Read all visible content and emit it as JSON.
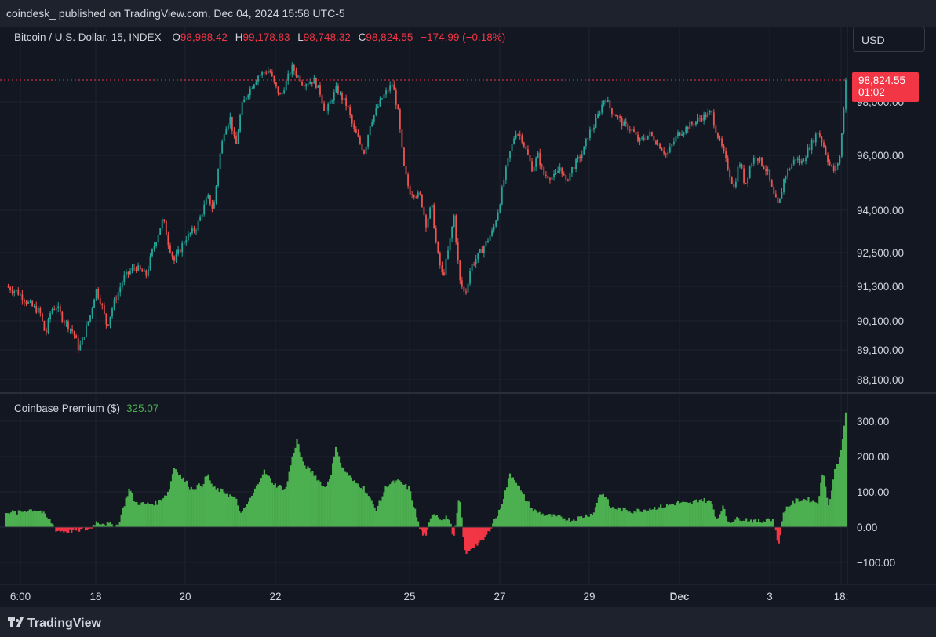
{
  "header": {
    "publish_line": "coindesk_ published on TradingView.com, Dec 04, 2024 15:58 UTC-5"
  },
  "legend": {
    "symbol": "Bitcoin / U.S. Dollar, 15, INDEX",
    "o_label": "O",
    "o_value": "98,988.42",
    "h_label": "H",
    "h_value": "99,178.83",
    "l_label": "L",
    "l_value": "98,748.32",
    "c_label": "C",
    "c_value": "98,824.55",
    "change": "−174.99 (−0.18%)"
  },
  "currency_button": "USD",
  "price_tag": {
    "price": "98,824.55",
    "countdown": "01:02"
  },
  "indicator": {
    "name": "Coinbase Premium ($)",
    "value": "325.07"
  },
  "footer": {
    "brand": "TradingView"
  },
  "colors": {
    "up": "#26a69a",
    "down": "#ef5350",
    "premium_pos": "#4caf50",
    "premium_neg": "#f23645",
    "price_line": "#f23645"
  },
  "chart_data": [
    {
      "type": "candlestick",
      "title": "Bitcoin / U.S. Dollar, 15, INDEX",
      "y_ticks": [
        "98,000.00",
        "96,000.00",
        "94,000.00",
        "92,500.00",
        "91,300.00",
        "90,100.00",
        "89,100.00",
        "88,100.00"
      ],
      "y_tick_values": [
        98000,
        96000,
        94000,
        92500,
        91300,
        90100,
        89100,
        88100
      ],
      "x_ticks": [
        "6:00",
        "18",
        "20",
        "22",
        "25",
        "27",
        "29",
        "Dec",
        "3",
        "18:"
      ],
      "last_price": 98824.55,
      "close_path": [
        [
          0,
          91300
        ],
        [
          2,
          91100
        ],
        [
          4,
          90700
        ],
        [
          6,
          90400
        ],
        [
          7,
          89600
        ],
        [
          8,
          90500
        ],
        [
          9,
          90600
        ],
        [
          10,
          90200
        ],
        [
          12,
          89700
        ],
        [
          13,
          89100
        ],
        [
          15,
          90300
        ],
        [
          16,
          91200
        ],
        [
          17,
          90700
        ],
        [
          18,
          89900
        ],
        [
          19,
          90600
        ],
        [
          21,
          91600
        ],
        [
          23,
          92000
        ],
        [
          25,
          91700
        ],
        [
          26,
          92500
        ],
        [
          28,
          93700
        ],
        [
          29,
          92800
        ],
        [
          30,
          92200
        ],
        [
          32,
          93000
        ],
        [
          34,
          93400
        ],
        [
          36,
          94500
        ],
        [
          37,
          94000
        ],
        [
          38,
          95800
        ],
        [
          39,
          97000
        ],
        [
          40,
          97400
        ],
        [
          41,
          96300
        ],
        [
          42,
          97800
        ],
        [
          43,
          98300
        ],
        [
          45,
          99000
        ],
        [
          47,
          99200
        ],
        [
          48,
          98600
        ],
        [
          49,
          98200
        ],
        [
          51,
          99300
        ],
        [
          53,
          98700
        ],
        [
          55,
          98800
        ],
        [
          56,
          98400
        ],
        [
          57,
          97600
        ],
        [
          59,
          98500
        ],
        [
          61,
          97800
        ],
        [
          62,
          97000
        ],
        [
          64,
          96100
        ],
        [
          65,
          97200
        ],
        [
          67,
          98100
        ],
        [
          69,
          98700
        ],
        [
          70,
          97600
        ],
        [
          71,
          95600
        ],
        [
          72,
          94700
        ],
        [
          74,
          94500
        ],
        [
          75,
          93500
        ],
        [
          76,
          94200
        ],
        [
          77,
          92500
        ],
        [
          78,
          91600
        ],
        [
          79,
          92600
        ],
        [
          80,
          93800
        ],
        [
          81,
          91500
        ],
        [
          82,
          91000
        ],
        [
          83,
          92000
        ],
        [
          85,
          92600
        ],
        [
          87,
          93300
        ],
        [
          88,
          94100
        ],
        [
          89,
          95200
        ],
        [
          90,
          96100
        ],
        [
          91,
          96900
        ],
        [
          92,
          96700
        ],
        [
          94,
          95500
        ],
        [
          95,
          96000
        ],
        [
          96,
          95300
        ],
        [
          98,
          95200
        ],
        [
          99,
          95600
        ],
        [
          100,
          95000
        ],
        [
          101,
          95500
        ],
        [
          103,
          96100
        ],
        [
          104,
          96800
        ],
        [
          105,
          97100
        ],
        [
          107,
          98200
        ],
        [
          108,
          97700
        ],
        [
          109,
          97500
        ],
        [
          110,
          97200
        ],
        [
          112,
          96900
        ],
        [
          113,
          96500
        ],
        [
          115,
          96800
        ],
        [
          117,
          96300
        ],
        [
          118,
          96000
        ],
        [
          120,
          96800
        ],
        [
          122,
          97100
        ],
        [
          124,
          97400
        ],
        [
          126,
          97600
        ],
        [
          127,
          96800
        ],
        [
          128,
          96200
        ],
        [
          129,
          95500
        ],
        [
          130,
          94800
        ],
        [
          131,
          95800
        ],
        [
          132,
          94900
        ],
        [
          133,
          95700
        ],
        [
          134,
          96000
        ],
        [
          136,
          95400
        ],
        [
          137,
          94600
        ],
        [
          138,
          94100
        ],
        [
          139,
          95200
        ],
        [
          141,
          95900
        ],
        [
          142,
          95700
        ],
        [
          144,
          96500
        ],
        [
          145,
          96900
        ],
        [
          146,
          96400
        ],
        [
          147,
          95700
        ],
        [
          148,
          95400
        ],
        [
          149,
          96000
        ],
        [
          150,
          98824.55
        ]
      ]
    },
    {
      "type": "area",
      "title": "Coinbase Premium ($)",
      "y_ticks": [
        "300.00",
        "200.00",
        "100.00",
        "0.00",
        "−100.00"
      ],
      "y_tick_values": [
        300,
        200,
        100,
        0,
        -100
      ],
      "last_value": 325.07,
      "values_path": [
        [
          0,
          45
        ],
        [
          2,
          40
        ],
        [
          4,
          50
        ],
        [
          6,
          48
        ],
        [
          8,
          15
        ],
        [
          9,
          -10
        ],
        [
          11,
          -12
        ],
        [
          13,
          -8
        ],
        [
          15,
          -5
        ],
        [
          16,
          15
        ],
        [
          18,
          10
        ],
        [
          20,
          5
        ],
        [
          21,
          60
        ],
        [
          22,
          110
        ],
        [
          23,
          70
        ],
        [
          25,
          65
        ],
        [
          27,
          70
        ],
        [
          29,
          100
        ],
        [
          30,
          170
        ],
        [
          32,
          130
        ],
        [
          33,
          110
        ],
        [
          35,
          120
        ],
        [
          36,
          150
        ],
        [
          37,
          110
        ],
        [
          39,
          100
        ],
        [
          41,
          80
        ],
        [
          42,
          35
        ],
        [
          44,
          90
        ],
        [
          46,
          160
        ],
        [
          48,
          120
        ],
        [
          50,
          110
        ],
        [
          51,
          190
        ],
        [
          52,
          250
        ],
        [
          53,
          180
        ],
        [
          55,
          150
        ],
        [
          57,
          110
        ],
        [
          58,
          150
        ],
        [
          59,
          230
        ],
        [
          60,
          170
        ],
        [
          62,
          130
        ],
        [
          64,
          110
        ],
        [
          66,
          50
        ],
        [
          67,
          80
        ],
        [
          68,
          120
        ],
        [
          70,
          130
        ],
        [
          72,
          110
        ],
        [
          73,
          50
        ],
        [
          74,
          -10
        ],
        [
          75,
          -30
        ],
        [
          76,
          40
        ],
        [
          77,
          35
        ],
        [
          78,
          20
        ],
        [
          79,
          30
        ],
        [
          80,
          -30
        ],
        [
          81,
          90
        ],
        [
          82,
          -80
        ],
        [
          83,
          -60
        ],
        [
          84,
          -50
        ],
        [
          85,
          -40
        ],
        [
          86,
          -20
        ],
        [
          87,
          15
        ],
        [
          88,
          40
        ],
        [
          89,
          90
        ],
        [
          90,
          150
        ],
        [
          91,
          135
        ],
        [
          92,
          100
        ],
        [
          94,
          50
        ],
        [
          96,
          35
        ],
        [
          98,
          30
        ],
        [
          100,
          25
        ],
        [
          101,
          20
        ],
        [
          103,
          30
        ],
        [
          104,
          35
        ],
        [
          105,
          40
        ],
        [
          106,
          95
        ],
        [
          107,
          90
        ],
        [
          108,
          55
        ],
        [
          110,
          50
        ],
        [
          112,
          45
        ],
        [
          114,
          50
        ],
        [
          116,
          55
        ],
        [
          118,
          60
        ],
        [
          120,
          70
        ],
        [
          122,
          65
        ],
        [
          124,
          80
        ],
        [
          126,
          70
        ],
        [
          127,
          20
        ],
        [
          128,
          60
        ],
        [
          129,
          15
        ],
        [
          131,
          25
        ],
        [
          133,
          20
        ],
        [
          135,
          15
        ],
        [
          136,
          25
        ],
        [
          137,
          20
        ],
        [
          138,
          -50
        ],
        [
          139,
          50
        ],
        [
          141,
          75
        ],
        [
          143,
          80
        ],
        [
          145,
          70
        ],
        [
          146,
          160
        ],
        [
          147,
          55
        ],
        [
          148,
          160
        ],
        [
          149,
          200
        ],
        [
          150,
          325
        ]
      ]
    }
  ]
}
